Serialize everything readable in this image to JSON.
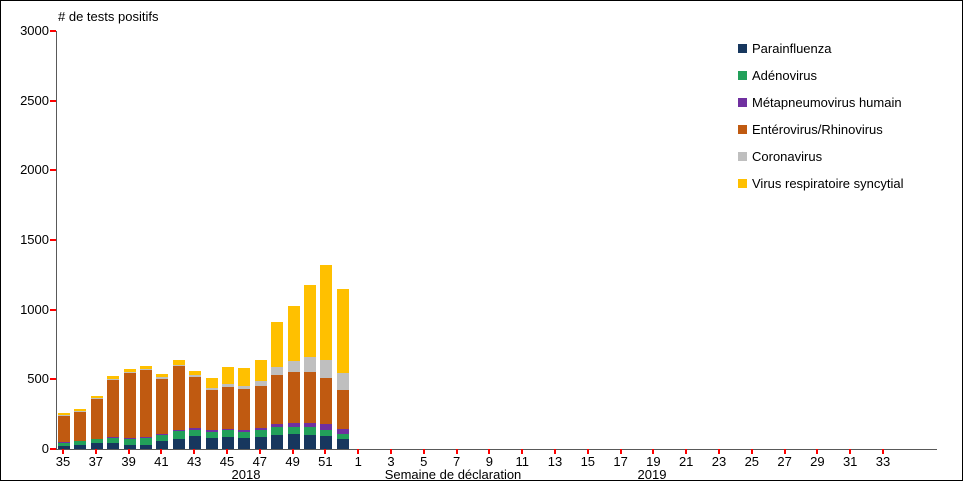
{
  "chart_data": {
    "type": "bar",
    "stacked": true,
    "title": "# de tests positifs",
    "xlabel": "Semaine de déclaration",
    "year_labels": [
      "2018",
      "2019"
    ],
    "ylim": [
      0,
      3000
    ],
    "yticks": [
      0,
      500,
      1000,
      1500,
      2000,
      2500,
      3000
    ],
    "x_tick_labels": [
      "35",
      "37",
      "39",
      "41",
      "43",
      "45",
      "47",
      "49",
      "51",
      "1",
      "3",
      "5",
      "7",
      "9",
      "11",
      "13",
      "15",
      "17",
      "19",
      "21",
      "23",
      "25",
      "27",
      "29",
      "31",
      "33"
    ],
    "x_tick_slots": [
      0,
      2,
      4,
      6,
      8,
      10,
      12,
      14,
      16,
      18,
      20,
      22,
      24,
      26,
      28,
      30,
      32,
      34,
      36,
      38,
      40,
      42,
      44,
      46,
      48,
      50
    ],
    "weeks": [
      "35",
      "36",
      "37",
      "38",
      "39",
      "40",
      "41",
      "42",
      "43",
      "44",
      "45",
      "46",
      "47",
      "48",
      "49",
      "50",
      "51",
      "52"
    ],
    "grid": false,
    "legend_position": "top-right",
    "axis_color": "#595959",
    "tick_color": "#FF0000",
    "series": [
      {
        "name": "Parainfluenza",
        "color": "#17375E",
        "values": [
          25,
          30,
          40,
          45,
          30,
          30,
          55,
          75,
          90,
          80,
          85,
          80,
          85,
          100,
          110,
          100,
          90,
          70
        ]
      },
      {
        "name": "Adénovirus",
        "color": "#22A05A",
        "values": [
          20,
          25,
          30,
          35,
          45,
          50,
          45,
          55,
          50,
          45,
          50,
          45,
          50,
          55,
          50,
          55,
          50,
          40
        ]
      },
      {
        "name": "Métapneumovirus humain",
        "color": "#7030A0",
        "values": [
          3,
          3,
          4,
          5,
          5,
          6,
          6,
          8,
          8,
          10,
          12,
          15,
          18,
          25,
          30,
          35,
          40,
          35
        ]
      },
      {
        "name": "Entérovirus/Rhinovirus",
        "color": "#C05A11",
        "values": [
          190,
          210,
          285,
          410,
          465,
          480,
          400,
          455,
          370,
          290,
          300,
          290,
          300,
          350,
          360,
          360,
          330,
          280
        ]
      },
      {
        "name": "Coronavirus",
        "color": "#BFBFBF",
        "values": [
          5,
          5,
          6,
          6,
          8,
          8,
          8,
          10,
          10,
          15,
          20,
          25,
          35,
          60,
          80,
          110,
          130,
          120
        ]
      },
      {
        "name": "Virus respiratoire syncytial",
        "color": "#FFC000",
        "values": [
          15,
          15,
          15,
          20,
          22,
          25,
          28,
          35,
          35,
          70,
          120,
          125,
          150,
          320,
          400,
          520,
          680,
          600
        ]
      }
    ]
  }
}
